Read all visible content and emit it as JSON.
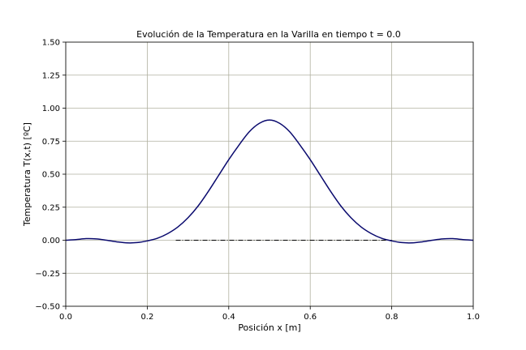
{
  "chart_data": {
    "type": "line",
    "title": "Evolución de la Temperatura en la Varilla en tiempo t = 0.0",
    "xlabel": "Posición x [m]",
    "ylabel": "Temperatura T(x,t) [ºC]",
    "xlim": [
      0.0,
      1.0
    ],
    "ylim": [
      -0.5,
      1.5
    ],
    "xticks": [
      0.0,
      0.2,
      0.4,
      0.6,
      0.8,
      1.0
    ],
    "xtick_labels": [
      "0.0",
      "0.2",
      "0.4",
      "0.6",
      "0.8",
      "1.0"
    ],
    "yticks": [
      -0.5,
      -0.25,
      0.0,
      0.25,
      0.5,
      0.75,
      1.0,
      1.25,
      1.5
    ],
    "ytick_labels": [
      "−0.50",
      "−0.25",
      "0.00",
      "0.25",
      "0.50",
      "0.75",
      "1.00",
      "1.25",
      "1.50"
    ],
    "grid": true,
    "colors": {
      "curve": "#0a0a6e",
      "grid": "#b0b0a0",
      "baseline": "#000000"
    },
    "series": [
      {
        "x": [
          0.0,
          0.025,
          0.05,
          0.075,
          0.1,
          0.125,
          0.15,
          0.175,
          0.2,
          0.225,
          0.25,
          0.275,
          0.3,
          0.325,
          0.35,
          0.375,
          0.4,
          0.425,
          0.45,
          0.475,
          0.5,
          0.525,
          0.55,
          0.575,
          0.6,
          0.625,
          0.65,
          0.675,
          0.7,
          0.725,
          0.75,
          0.775,
          0.8,
          0.825,
          0.85,
          0.875,
          0.9,
          0.925,
          0.95,
          0.975,
          1.0
        ],
        "values": [
          0.0,
          0.005,
          0.012,
          0.01,
          0.0,
          -0.012,
          -0.02,
          -0.018,
          -0.005,
          0.015,
          0.05,
          0.1,
          0.17,
          0.26,
          0.37,
          0.49,
          0.61,
          0.72,
          0.82,
          0.885,
          0.91,
          0.885,
          0.82,
          0.72,
          0.61,
          0.49,
          0.37,
          0.26,
          0.17,
          0.1,
          0.05,
          0.015,
          -0.005,
          -0.018,
          -0.02,
          -0.012,
          0.0,
          0.01,
          0.012,
          0.005,
          0.0
        ]
      }
    ],
    "baseline": {
      "x_start": 0.27,
      "x_end": 0.8,
      "y": 0.0
    }
  }
}
